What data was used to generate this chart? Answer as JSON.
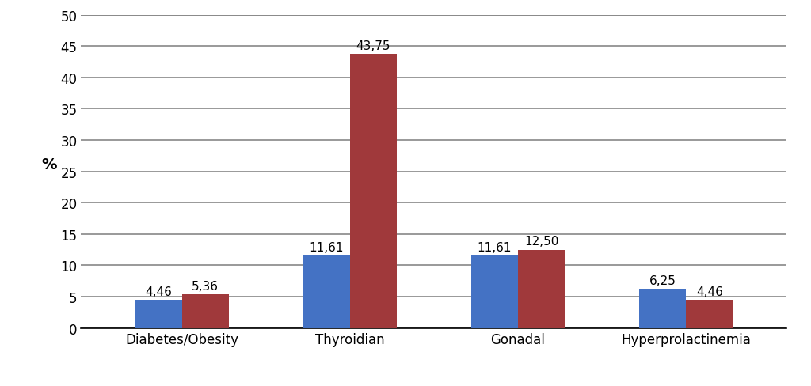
{
  "categories": [
    "Diabetes/Obesity",
    "Thyroidian",
    "Gonadal",
    "Hyperprolactinemia"
  ],
  "male_values": [
    4.46,
    11.61,
    11.61,
    6.25
  ],
  "female_values": [
    5.36,
    43.75,
    12.5,
    4.46
  ],
  "male_labels": [
    "4,46",
    "11,61",
    "11,61",
    "6,25"
  ],
  "female_labels": [
    "5,36",
    "43,75",
    "12,50",
    "4,46"
  ],
  "male_color": "#4472C4",
  "female_color": "#A0393B",
  "ylabel": "%",
  "ylim": [
    0,
    50
  ],
  "yticks": [
    0,
    5,
    10,
    15,
    20,
    25,
    30,
    35,
    40,
    45,
    50
  ],
  "bar_width": 0.28,
  "background_color": "#ffffff",
  "label_fontsize": 11,
  "tick_fontsize": 12,
  "ylabel_fontsize": 14,
  "grid_linewidth": 1.2,
  "grid_color": "#888888"
}
